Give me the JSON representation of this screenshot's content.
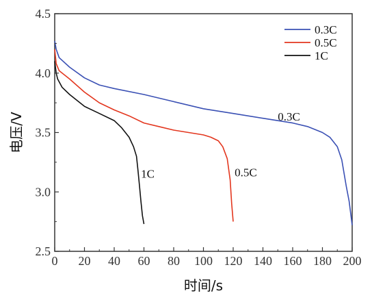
{
  "chart_data": {
    "type": "line",
    "xlabel": "时间/s",
    "ylabel": "电压/V",
    "xlim": [
      0,
      200
    ],
    "ylim": [
      2.5,
      4.5
    ],
    "xticks": [
      0,
      20,
      40,
      60,
      80,
      100,
      120,
      140,
      160,
      180,
      200
    ],
    "xtick_labels": [
      "0",
      "20",
      "40",
      "60",
      "80",
      "100",
      "120",
      "140",
      "160",
      "180",
      "200"
    ],
    "yticks": [
      2.5,
      3.0,
      3.5,
      4.0,
      4.5
    ],
    "ytick_labels": [
      "2.5",
      "3.0",
      "3.5",
      "4.0",
      "4.5"
    ],
    "grid": false,
    "legend_position": "top-right",
    "series": [
      {
        "name": "0.3C",
        "color": "#3a50b4",
        "x": [
          0,
          1,
          3,
          10,
          20,
          30,
          40,
          60,
          80,
          100,
          120,
          140,
          160,
          170,
          180,
          185,
          190,
          193,
          196,
          198,
          200
        ],
        "y": [
          4.27,
          4.2,
          4.13,
          4.05,
          3.96,
          3.9,
          3.87,
          3.82,
          3.76,
          3.7,
          3.66,
          3.62,
          3.58,
          3.55,
          3.5,
          3.46,
          3.38,
          3.27,
          3.05,
          2.92,
          2.72
        ]
      },
      {
        "name": "0.5C",
        "color": "#e3361e",
        "x": [
          0,
          1,
          3,
          10,
          20,
          30,
          40,
          50,
          60,
          70,
          80,
          90,
          100,
          105,
          110,
          113,
          116,
          118,
          119,
          120
        ],
        "y": [
          4.2,
          4.08,
          4.02,
          3.95,
          3.84,
          3.75,
          3.69,
          3.64,
          3.58,
          3.55,
          3.52,
          3.5,
          3.48,
          3.46,
          3.43,
          3.38,
          3.28,
          3.1,
          2.9,
          2.75
        ]
      },
      {
        "name": "1C",
        "color": "#111111",
        "x": [
          0,
          1,
          2,
          5,
          10,
          20,
          30,
          40,
          45,
          50,
          53,
          55,
          56,
          57,
          58,
          59,
          60
        ],
        "y": [
          4.1,
          4.0,
          3.95,
          3.88,
          3.82,
          3.72,
          3.66,
          3.6,
          3.54,
          3.46,
          3.38,
          3.3,
          3.18,
          3.05,
          2.92,
          2.8,
          2.73
        ]
      }
    ],
    "annotations": [
      {
        "text": "0.3C",
        "x": 150,
        "y": 3.6
      },
      {
        "text": "0.5C",
        "x": 121,
        "y": 3.13
      },
      {
        "text": "1C",
        "x": 58,
        "y": 3.12
      }
    ]
  }
}
